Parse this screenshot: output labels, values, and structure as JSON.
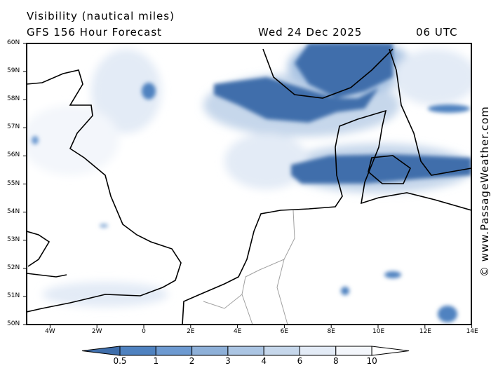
{
  "header": {
    "title": "Visibility (nautical miles)",
    "subtitle": "GFS 156 Hour Forecast",
    "date": "Wed 24 Dec 2025",
    "time": "06 UTC"
  },
  "lat_ticks": [
    "60N",
    "59N",
    "58N",
    "57N",
    "56N",
    "55N",
    "54N",
    "53N",
    "52N",
    "51N",
    "50N"
  ],
  "lon_ticks": [
    "4W",
    "2W",
    "0",
    "2E",
    "4E",
    "6E",
    "8E",
    "10E",
    "12E",
    "14E"
  ],
  "colorbar": {
    "labels": [
      "0.5",
      "1",
      "2",
      "3",
      "4",
      "6",
      "8",
      "10"
    ],
    "colors": [
      "#3f6eab",
      "#4f82c0",
      "#6d9ad1",
      "#8eb0d8",
      "#abc5e3",
      "#c6d7eb",
      "#e3ebf6",
      "#f3f6fb"
    ]
  },
  "watermark": "© www.PassageWeather.com",
  "colors": {
    "coast": "#000000",
    "border": "#a0a0a0"
  }
}
